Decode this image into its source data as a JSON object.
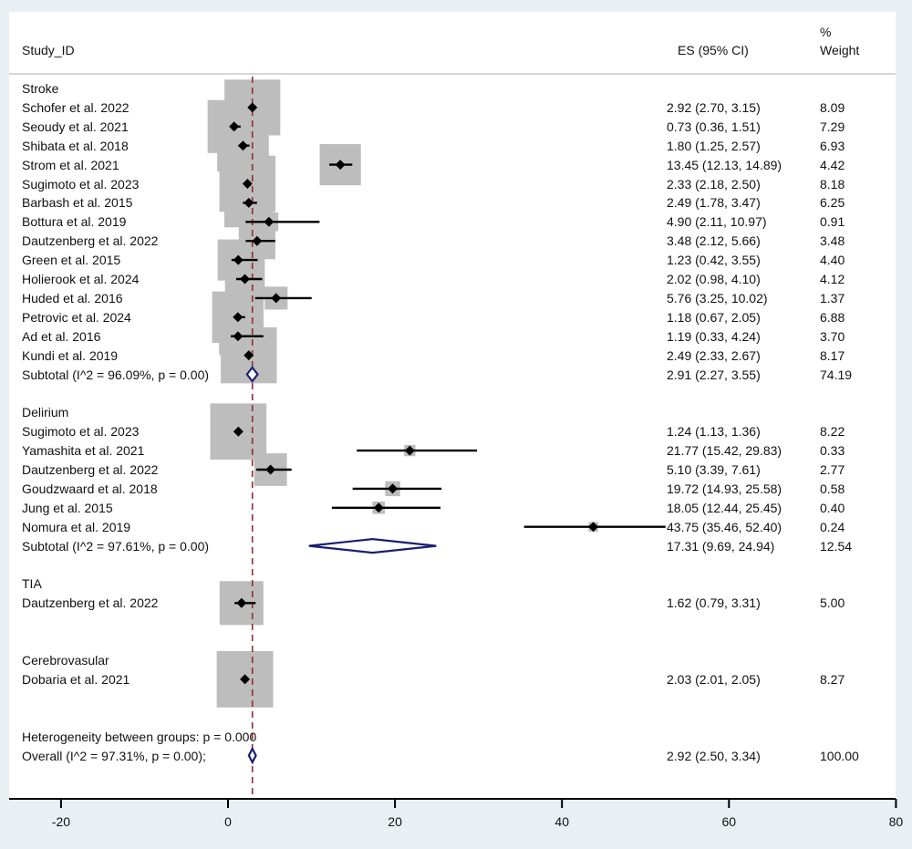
{
  "chart_data": {
    "type": "forest",
    "title": "",
    "columns": {
      "study": "Study_ID",
      "es": "ES (95% CI)",
      "weight_line1": "%",
      "weight_line2": "Weight"
    },
    "xlim": [
      -20,
      80
    ],
    "xticks": [
      -20,
      0,
      20,
      40,
      60,
      80
    ],
    "xtick_labels": [
      "-20",
      "0",
      "20",
      "40",
      "60",
      "80"
    ],
    "reference_line": 2.92,
    "colors": {
      "box": "#bdbdbd",
      "point": "#000000",
      "diamond": "#1a1f6e",
      "ref_line": "#8b2e3a",
      "axis": "#000000"
    },
    "rows": [
      {
        "kind": "group",
        "label": "Stroke"
      },
      {
        "kind": "study",
        "label": "Schofer et al. 2022",
        "es": 2.92,
        "lo": 2.7,
        "hi": 3.15,
        "es_text": "2.92 (2.70, 3.15)",
        "weight": 8.09,
        "weight_text": "8.09"
      },
      {
        "kind": "study",
        "label": "Seoudy et al. 2021",
        "es": 0.73,
        "lo": 0.36,
        "hi": 1.51,
        "es_text": "0.73 (0.36, 1.51)",
        "weight": 7.29,
        "weight_text": "7.29"
      },
      {
        "kind": "study",
        "label": "Shibata et al. 2018",
        "es": 1.8,
        "lo": 1.25,
        "hi": 2.57,
        "es_text": "1.80 (1.25, 2.57)",
        "weight": 6.93,
        "weight_text": "6.93"
      },
      {
        "kind": "study",
        "label": "Strom et al. 2021",
        "es": 13.45,
        "lo": 12.13,
        "hi": 14.89,
        "es_text": "13.45 (12.13, 14.89)",
        "weight": 4.42,
        "weight_text": "4.42"
      },
      {
        "kind": "study",
        "label": "Sugimoto et al. 2023",
        "es": 2.33,
        "lo": 2.18,
        "hi": 2.5,
        "es_text": "2.33 (2.18, 2.50)",
        "weight": 8.18,
        "weight_text": "8.18"
      },
      {
        "kind": "study",
        "label": "Barbash et al. 2015",
        "es": 2.49,
        "lo": 1.78,
        "hi": 3.47,
        "es_text": "2.49 (1.78, 3.47)",
        "weight": 6.25,
        "weight_text": "6.25"
      },
      {
        "kind": "study",
        "label": "Bottura et al. 2019",
        "es": 4.9,
        "lo": 2.11,
        "hi": 10.97,
        "es_text": "4.90 (2.11, 10.97)",
        "weight": 0.91,
        "weight_text": "0.91"
      },
      {
        "kind": "study",
        "label": "Dautzenberg et al. 2022",
        "es": 3.48,
        "lo": 2.12,
        "hi": 5.66,
        "es_text": "3.48 (2.12, 5.66)",
        "weight": 3.48,
        "weight_text": "3.48"
      },
      {
        "kind": "study",
        "label": "Green et al. 2015",
        "es": 1.23,
        "lo": 0.42,
        "hi": 3.55,
        "es_text": "1.23 (0.42, 3.55)",
        "weight": 4.4,
        "weight_text": "4.40"
      },
      {
        "kind": "study",
        "label": "Holierook et al. 2024",
        "es": 2.02,
        "lo": 0.98,
        "hi": 4.1,
        "es_text": "2.02 (0.98, 4.10)",
        "weight": 4.12,
        "weight_text": "4.12"
      },
      {
        "kind": "study",
        "label": "Huded et al. 2016",
        "es": 5.76,
        "lo": 3.25,
        "hi": 10.02,
        "es_text": "5.76 (3.25, 10.02)",
        "weight": 1.37,
        "weight_text": "1.37"
      },
      {
        "kind": "study",
        "label": "Petrovic et al. 2024",
        "es": 1.18,
        "lo": 0.67,
        "hi": 2.05,
        "es_text": "1.18 (0.67, 2.05)",
        "weight": 6.88,
        "weight_text": "6.88"
      },
      {
        "kind": "study",
        "label": "Ad et al. 2016",
        "es": 1.19,
        "lo": 0.33,
        "hi": 4.24,
        "es_text": "1.19 (0.33, 4.24)",
        "weight": 3.7,
        "weight_text": "3.70"
      },
      {
        "kind": "study",
        "label": "Kundi et al. 2019",
        "es": 2.49,
        "lo": 2.33,
        "hi": 2.67,
        "es_text": "2.49 (2.33, 2.67)",
        "weight": 8.17,
        "weight_text": "8.17"
      },
      {
        "kind": "subtotal",
        "label": "Subtotal  (I^2 = 96.09%, p = 0.00)",
        "es": 2.91,
        "lo": 2.27,
        "hi": 3.55,
        "es_text": "2.91 (2.27, 3.55)",
        "weight": 74.19,
        "weight_text": "74.19"
      },
      {
        "kind": "blank"
      },
      {
        "kind": "group",
        "label": "Delirium"
      },
      {
        "kind": "study",
        "label": "Sugimoto et al. 2023",
        "es": 1.24,
        "lo": 1.13,
        "hi": 1.36,
        "es_text": "1.24 (1.13, 1.36)",
        "weight": 8.22,
        "weight_text": "8.22"
      },
      {
        "kind": "study",
        "label": "Yamashita et al. 2021",
        "es": 21.77,
        "lo": 15.42,
        "hi": 29.83,
        "es_text": "21.77 (15.42, 29.83)",
        "weight": 0.33,
        "weight_text": "0.33"
      },
      {
        "kind": "study",
        "label": "Dautzenberg et al. 2022",
        "es": 5.1,
        "lo": 3.39,
        "hi": 7.61,
        "es_text": "5.10 (3.39, 7.61)",
        "weight": 2.77,
        "weight_text": "2.77"
      },
      {
        "kind": "study",
        "label": "Goudzwaard et al. 2018",
        "es": 19.72,
        "lo": 14.93,
        "hi": 25.58,
        "es_text": "19.72 (14.93, 25.58)",
        "weight": 0.58,
        "weight_text": "0.58"
      },
      {
        "kind": "study",
        "label": "Jung et al. 2015",
        "es": 18.05,
        "lo": 12.44,
        "hi": 25.45,
        "es_text": "18.05 (12.44, 25.45)",
        "weight": 0.4,
        "weight_text": "0.40"
      },
      {
        "kind": "study",
        "label": "Nomura et al. 2019",
        "es": 43.75,
        "lo": 35.46,
        "hi": 52.4,
        "es_text": "43.75 (35.46, 52.40)",
        "weight": 0.24,
        "weight_text": "0.24"
      },
      {
        "kind": "subtotal",
        "label": "Subtotal  (I^2 = 97.61%, p = 0.00)",
        "es": 17.31,
        "lo": 9.69,
        "hi": 24.94,
        "es_text": "17.31 (9.69, 24.94)",
        "weight": 12.54,
        "weight_text": "12.54"
      },
      {
        "kind": "blank"
      },
      {
        "kind": "group",
        "label": "TIA"
      },
      {
        "kind": "study",
        "label": "Dautzenberg et al. 2022",
        "es": 1.62,
        "lo": 0.79,
        "hi": 3.31,
        "es_text": "1.62 (0.79, 3.31)",
        "weight": 5.0,
        "weight_text": "5.00"
      },
      {
        "kind": "blank"
      },
      {
        "kind": "blank"
      },
      {
        "kind": "group",
        "label": "Cerebrovasular"
      },
      {
        "kind": "study",
        "label": "Dobaria et al. 2021",
        "es": 2.03,
        "lo": 2.01,
        "hi": 2.05,
        "es_text": "2.03 (2.01, 2.05)",
        "weight": 8.27,
        "weight_text": "8.27"
      },
      {
        "kind": "blank"
      },
      {
        "kind": "blank"
      },
      {
        "kind": "note",
        "label": "Heterogeneity between groups: p = 0.000"
      },
      {
        "kind": "overall",
        "label": "Overall  (I^2 = 97.31%, p = 0.00);",
        "es": 2.92,
        "lo": 2.5,
        "hi": 3.34,
        "es_text": "2.92 (2.50, 3.34)",
        "weight": 100.0,
        "weight_text": "100.00"
      }
    ]
  }
}
